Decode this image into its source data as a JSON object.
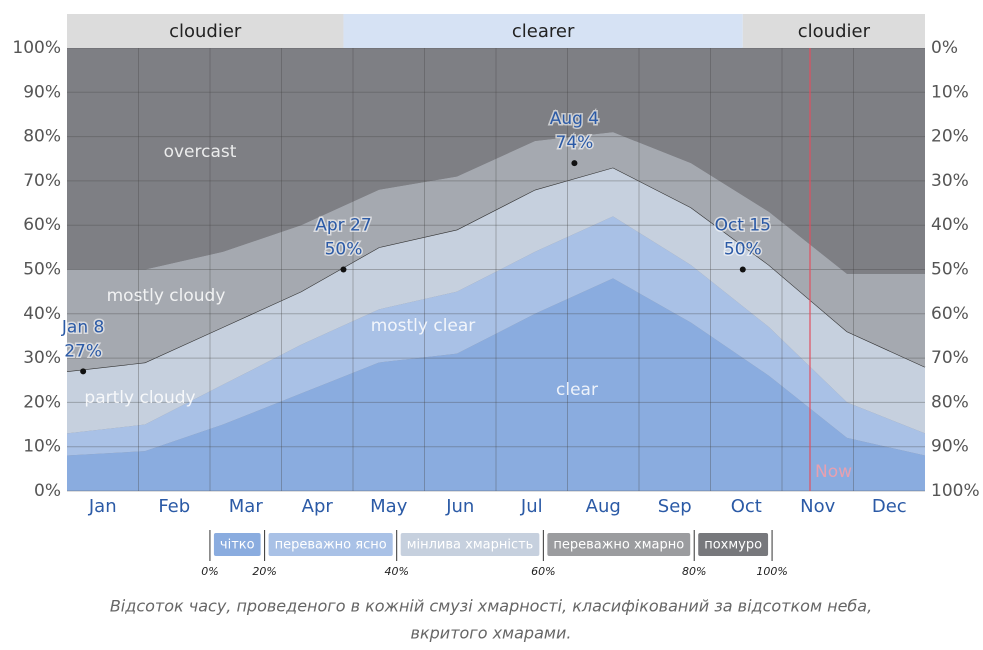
{
  "chart_data": {
    "type": "stacked_area",
    "categories": [
      "Jan",
      "Feb",
      "Mar",
      "Apr",
      "May",
      "Jun",
      "Jul",
      "Aug",
      "Sep",
      "Oct",
      "Nov",
      "Dec"
    ],
    "series": [
      {
        "name": "clear",
        "color": "#8aacdf",
        "values": [
          8,
          9,
          15,
          22,
          29,
          31,
          40,
          48,
          38,
          26,
          12,
          8
        ]
      },
      {
        "name": "mostly clear",
        "color": "#a9c1e6",
        "values": [
          5,
          6,
          9,
          11,
          12,
          14,
          14,
          14,
          13,
          11,
          8,
          5
        ]
      },
      {
        "name": "partly cloudy",
        "color": "#c6d0de",
        "values": [
          14,
          14,
          13,
          12,
          14,
          14,
          14,
          11,
          13,
          14,
          16,
          15
        ]
      },
      {
        "name": "mostly cloudy",
        "color": "#a5a9b0",
        "values": [
          23,
          21,
          17,
          15,
          13,
          12,
          11,
          8,
          10,
          12,
          13,
          21
        ]
      },
      {
        "name": "overcast",
        "color": "#7e7f84",
        "values": [
          50,
          50,
          46,
          40,
          32,
          29,
          21,
          19,
          26,
          37,
          51,
          51
        ]
      }
    ],
    "ylim": [
      0,
      100
    ],
    "yticks": [
      {
        "value": 0,
        "label": "0%"
      },
      {
        "value": 10,
        "label": "10%"
      },
      {
        "value": 20,
        "label": "20%"
      },
      {
        "value": 30,
        "label": "30%"
      },
      {
        "value": 40,
        "label": "40%"
      },
      {
        "value": 50,
        "label": "50%"
      },
      {
        "value": 60,
        "label": "60%"
      },
      {
        "value": 70,
        "label": "70%"
      },
      {
        "value": 80,
        "label": "80%"
      },
      {
        "value": 90,
        "label": "90%"
      },
      {
        "value": 100,
        "label": "100%"
      }
    ],
    "y2lim": [
      100,
      0
    ],
    "y2ticks": [
      {
        "value": 0,
        "label": "0%"
      },
      {
        "value": 10,
        "label": "10%"
      },
      {
        "value": 20,
        "label": "20%"
      },
      {
        "value": 30,
        "label": "30%"
      },
      {
        "value": 40,
        "label": "40%"
      },
      {
        "value": 50,
        "label": "50%"
      },
      {
        "value": 60,
        "label": "60%"
      },
      {
        "value": 70,
        "label": "70%"
      },
      {
        "value": 80,
        "label": "80%"
      },
      {
        "value": 90,
        "label": "90%"
      },
      {
        "value": 100,
        "label": "100%"
      }
    ],
    "grid": true,
    "annotations": [
      {
        "label": "Jan 8",
        "value": 27,
        "value_label": "27%"
      },
      {
        "label": "Apr 27",
        "value": 50,
        "value_label": "50%"
      },
      {
        "label": "Aug 4",
        "value": 74,
        "value_label": "74%"
      },
      {
        "label": "Oct 15",
        "value": 50,
        "value_label": "50%"
      }
    ],
    "bands": [
      {
        "label": "cloudier",
        "color": "#dcdcdc"
      },
      {
        "label": "clearer",
        "color": "#d6e2f4"
      },
      {
        "label": "cloudier",
        "color": "#dcdcdc"
      }
    ],
    "now_label": "Now",
    "legend": {
      "items": [
        {
          "label": "чітко",
          "color": "#8aacdf"
        },
        {
          "label": "переважно ясно",
          "color": "#a9c1e6"
        },
        {
          "label": "мінлива хмарність",
          "color": "#c6d0de"
        },
        {
          "label": "переважно хмарно",
          "color": "#9b9c9f"
        },
        {
          "label": "похмуро",
          "color": "#77787c"
        }
      ],
      "ticks": [
        {
          "value": 0,
          "label": "0%"
        },
        {
          "value": 20,
          "label": "20%"
        },
        {
          "value": 40,
          "label": "40%"
        },
        {
          "value": 60,
          "label": "60%"
        },
        {
          "value": 80,
          "label": "80%"
        },
        {
          "value": 100,
          "label": "100%"
        }
      ]
    },
    "caption": [
      "Відсоток часу, проведеного в кожній смузі хмарності, класифікований за відсотком неба,",
      "вкритого хмарами."
    ]
  }
}
